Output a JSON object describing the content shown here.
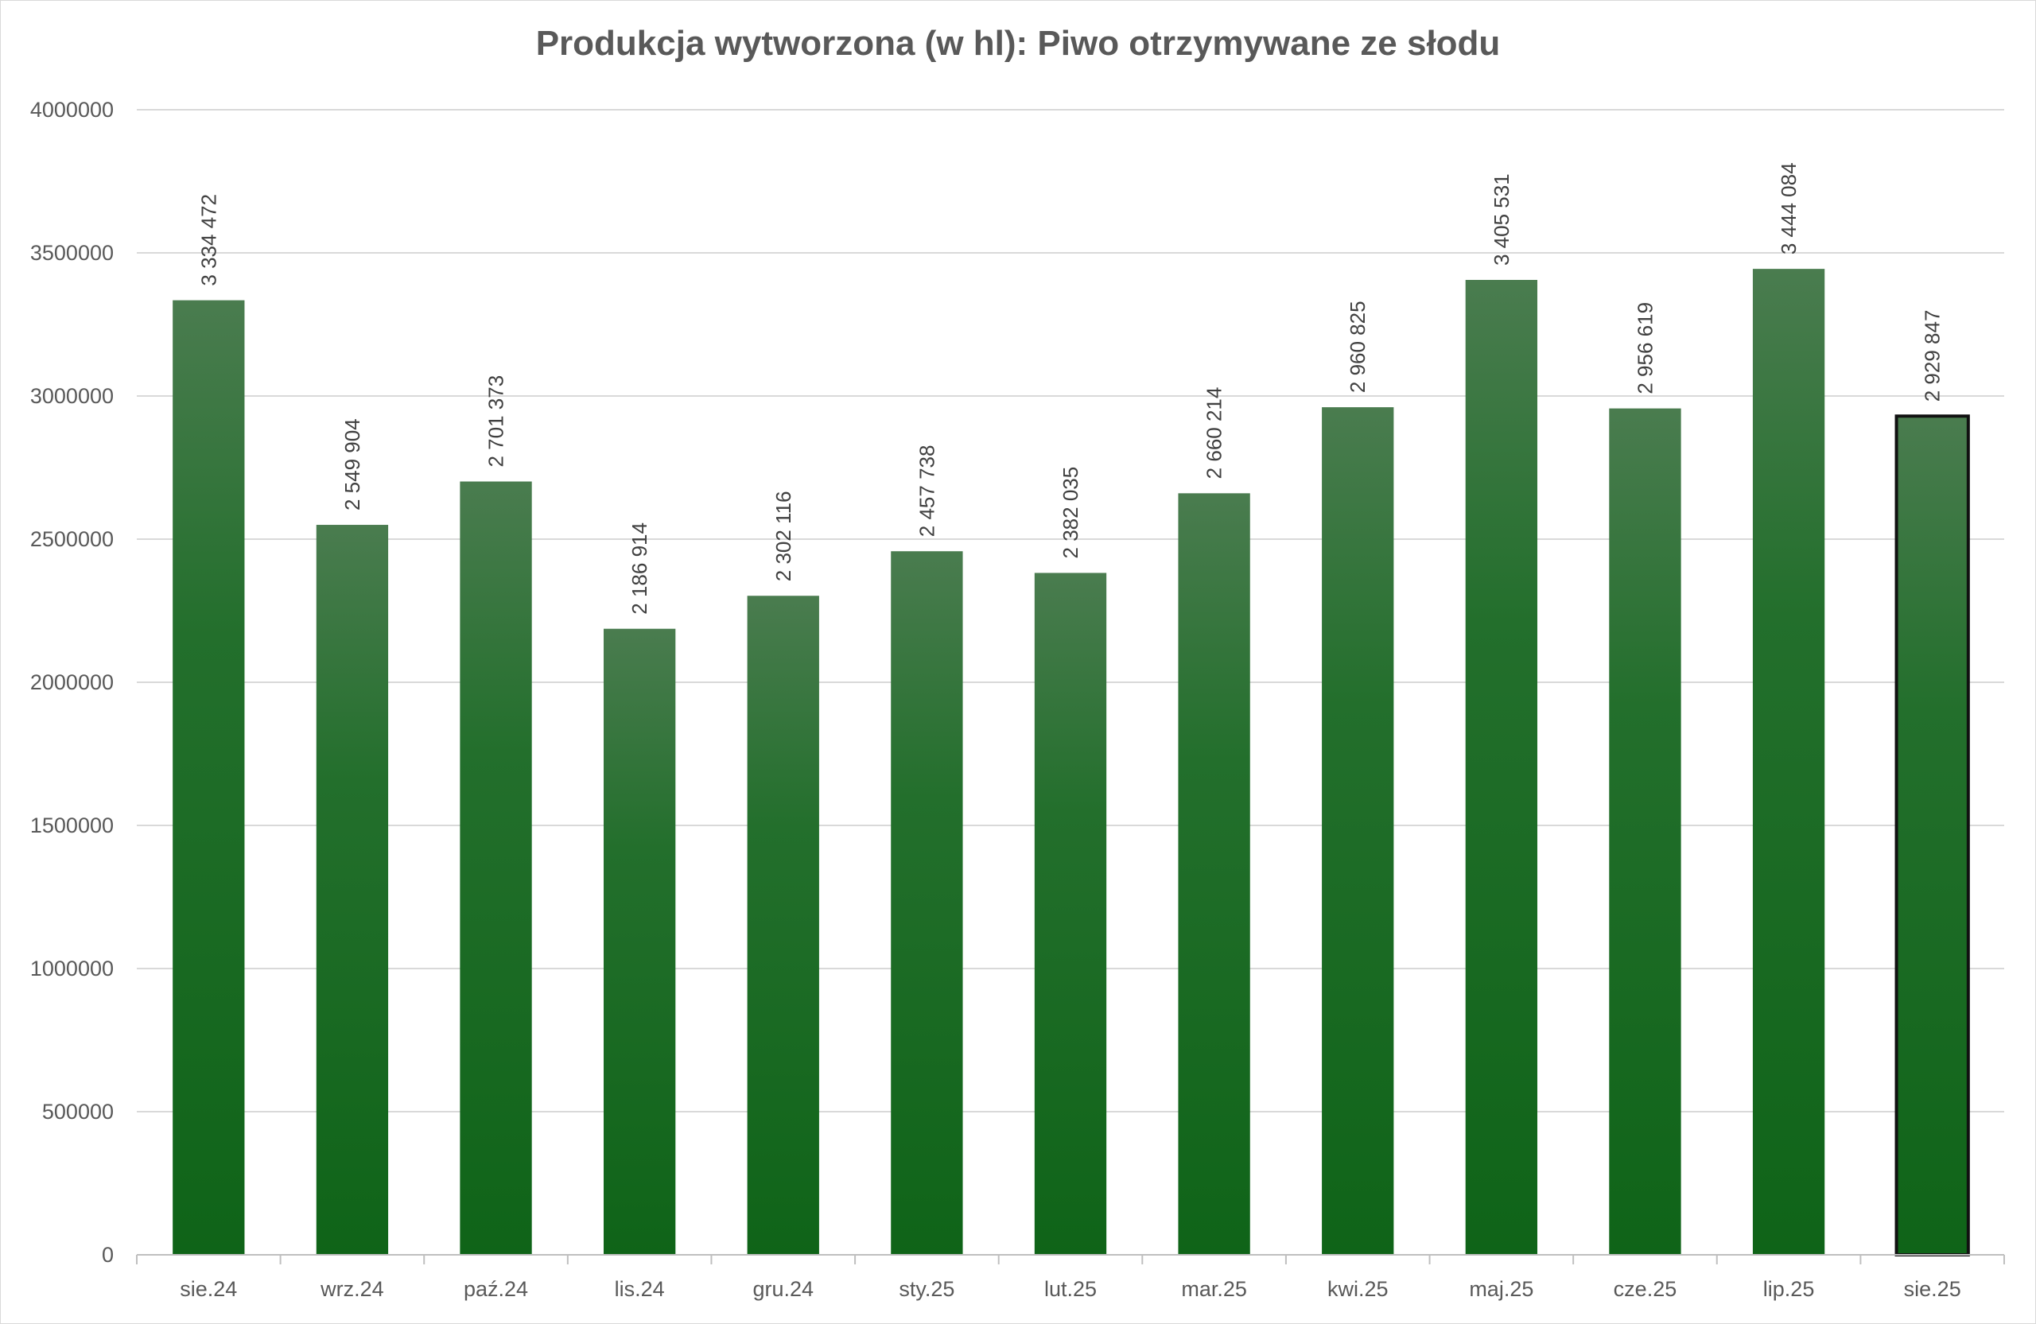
{
  "chart_data": {
    "type": "bar",
    "title": "Produkcja wytworzona (w hl): Piwo otrzymywane ze słodu",
    "xlabel": "",
    "ylabel": "",
    "ylim": [
      0,
      4000000
    ],
    "y_ticks": [
      0,
      500000,
      1000000,
      1500000,
      2000000,
      2500000,
      3000000,
      3500000,
      4000000
    ],
    "y_tick_labels": [
      "0",
      "500000",
      "1000000",
      "1500000",
      "2000000",
      "2500000",
      "3000000",
      "3500000",
      "4000000"
    ],
    "categories": [
      "sie.24",
      "wrz.24",
      "paź.24",
      "lis.24",
      "gru.24",
      "sty.25",
      "lut.25",
      "mar.25",
      "kwi.25",
      "maj.25",
      "cze.25",
      "lip.25",
      "sie.25"
    ],
    "values": [
      3334472,
      2549904,
      2701373,
      2186914,
      2302116,
      2457738,
      2382035,
      2660214,
      2960825,
      3405531,
      2956619,
      3444084,
      2929847
    ],
    "data_labels": [
      "3 334 472",
      "2 549 904",
      "2 701 373",
      "2 186 914",
      "2 302 116",
      "2 457 738",
      "2 382 035",
      "2 660 214",
      "2 960 825",
      "3 405 531",
      "2 956 619",
      "3 444 084",
      "2 929 847"
    ],
    "highlighted_category": "sie.25",
    "grid": true,
    "legend": "none",
    "colors": {
      "bar_top": "#4a7c4f",
      "bar_bottom": "#0f6418",
      "highlight_border": "#111111",
      "gridline": "#d9d9d9",
      "text": "#595959"
    }
  }
}
